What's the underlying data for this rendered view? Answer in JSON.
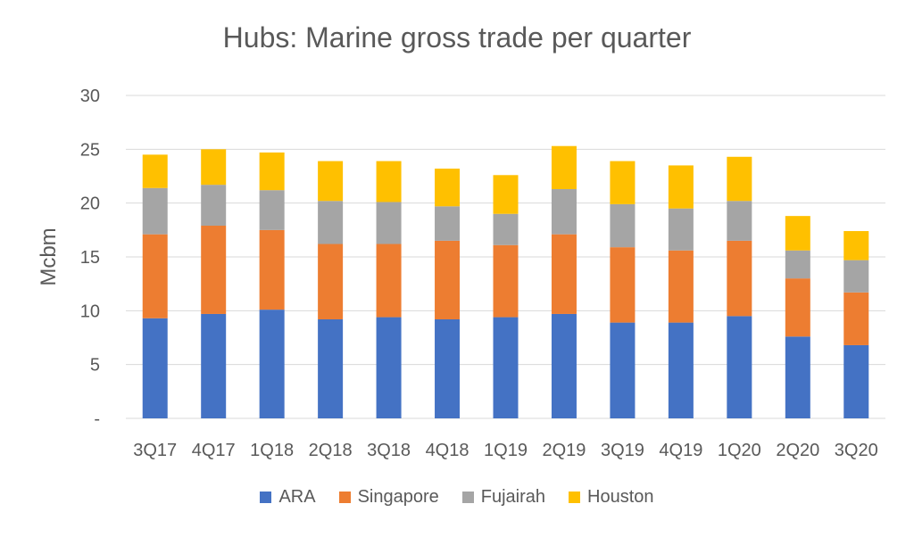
{
  "chart_data": {
    "type": "bar",
    "stacked": true,
    "title": "Hubs: Marine gross trade per quarter",
    "xlabel": "",
    "ylabel": "Mcbm",
    "ylim": [
      0,
      30
    ],
    "yticks": [
      0,
      5,
      10,
      15,
      20,
      25,
      30
    ],
    "ytick_labels": [
      "-",
      "5",
      "10",
      "15",
      "20",
      "25",
      "30"
    ],
    "grid": true,
    "legend_position": "bottom",
    "categories": [
      "3Q17",
      "4Q17",
      "1Q18",
      "2Q18",
      "3Q18",
      "4Q18",
      "1Q19",
      "2Q19",
      "3Q19",
      "4Q19",
      "1Q20",
      "2Q20",
      "3Q20"
    ],
    "series": [
      {
        "name": "ARA",
        "color": "#4472C4",
        "values": [
          9.3,
          9.7,
          10.1,
          9.2,
          9.4,
          9.2,
          9.4,
          9.7,
          8.9,
          8.9,
          9.5,
          7.6,
          6.8
        ]
      },
      {
        "name": "Singapore",
        "color": "#ED7D31",
        "values": [
          7.8,
          8.2,
          7.4,
          7.0,
          6.8,
          7.3,
          6.7,
          7.4,
          7.0,
          6.7,
          7.0,
          5.4,
          4.9
        ]
      },
      {
        "name": "Fujairah",
        "color": "#A5A5A5",
        "values": [
          4.3,
          3.8,
          3.7,
          4.0,
          3.9,
          3.2,
          2.9,
          4.2,
          4.0,
          3.9,
          3.7,
          2.6,
          3.0
        ]
      },
      {
        "name": "Houston",
        "color": "#FFC000",
        "values": [
          3.1,
          3.3,
          3.5,
          3.7,
          3.8,
          3.5,
          3.6,
          4.0,
          4.0,
          4.0,
          4.1,
          3.2,
          2.7
        ]
      }
    ]
  }
}
